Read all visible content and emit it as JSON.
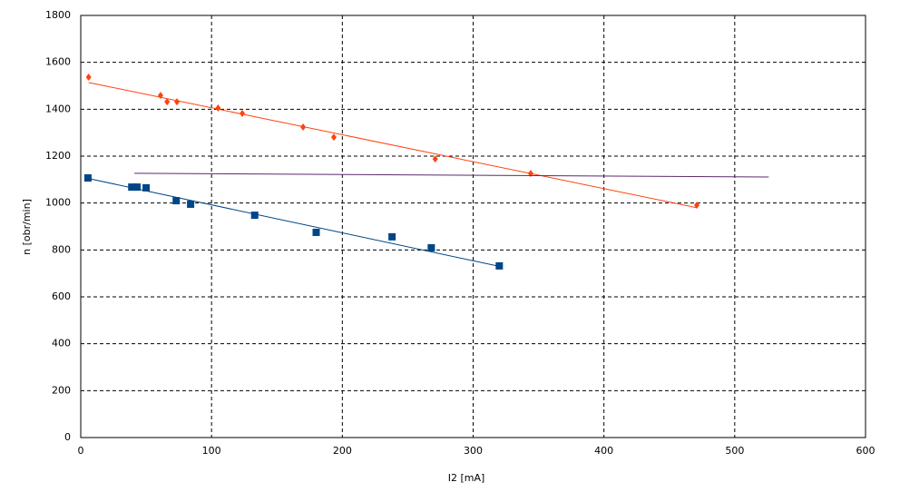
{
  "chart_data": {
    "type": "scatter",
    "x_label": "I2 [mA]",
    "y_label": "n [obr/min]",
    "xlim": [
      0,
      600
    ],
    "ylim": [
      0,
      1800
    ],
    "xticks": [
      0,
      100,
      200,
      300,
      400,
      500,
      600
    ],
    "yticks": [
      0,
      200,
      400,
      600,
      800,
      1000,
      1200,
      1400,
      1600,
      1800
    ],
    "grid": true,
    "series": [
      {
        "mode": "markers",
        "marker": "diamond",
        "color": "#ff420e",
        "x": [
          6,
          61,
          66,
          73.5,
          105,
          123.5,
          170,
          193.5,
          271,
          344,
          471
        ],
        "values": [
          1537,
          1459,
          1432,
          1432,
          1405,
          1382,
          1324,
          1281,
          1188,
          1126,
          991
        ]
      },
      {
        "mode": "line",
        "color": "#ff420e",
        "x": [
          6,
          471
        ],
        "values": [
          1514,
          980
        ]
      },
      {
        "mode": "markers",
        "marker": "square",
        "color": "#004586",
        "x": [
          5.5,
          39,
          43,
          50,
          73,
          84,
          133,
          180,
          238,
          268,
          320
        ],
        "values": [
          1107,
          1068,
          1068,
          1065,
          1010,
          995,
          948,
          875,
          856,
          809,
          732
        ]
      },
      {
        "mode": "line",
        "color": "#004586",
        "x": [
          5.5,
          320
        ],
        "values": [
          1105,
          730
        ]
      },
      {
        "mode": "line",
        "color": "#5b2a6e",
        "x": [
          41,
          526
        ],
        "values": [
          1127,
          1111
        ]
      }
    ]
  }
}
